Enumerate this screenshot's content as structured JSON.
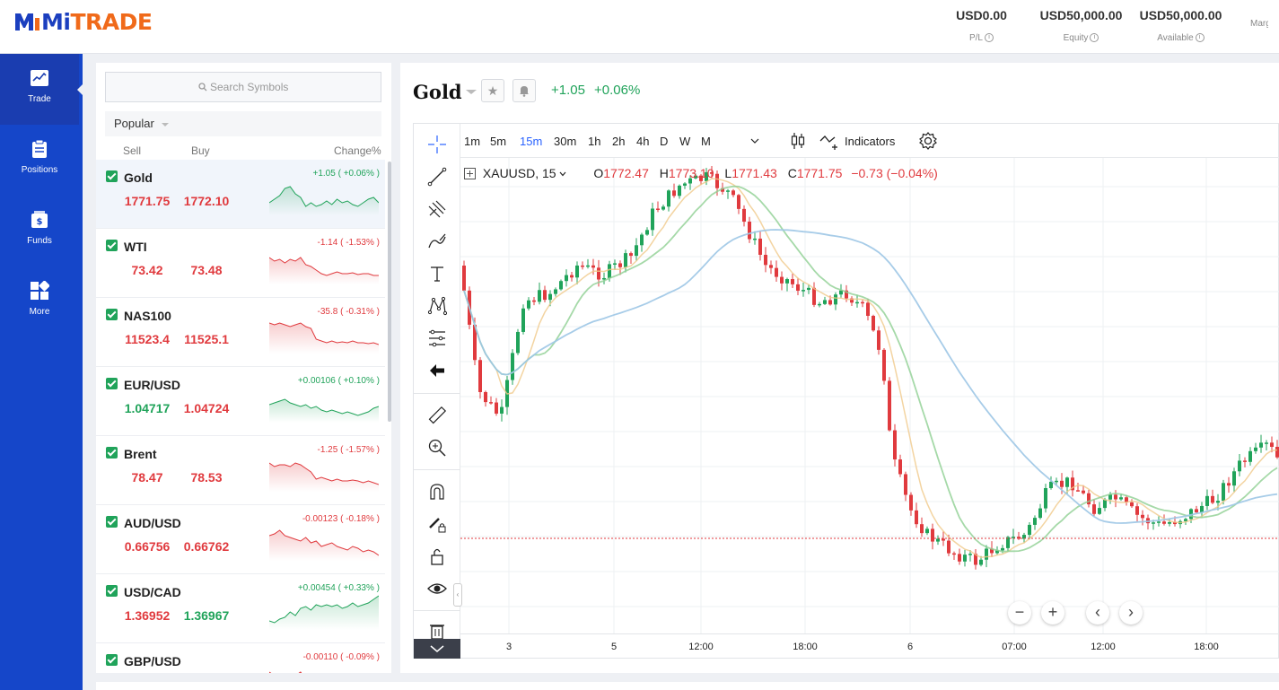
{
  "brand": {
    "logo_a": "Mi",
    "logo_b": "TRADE"
  },
  "account": [
    {
      "value": "USD0.00",
      "label": "P/L"
    },
    {
      "value": "USD50,000.00",
      "label": "Equity"
    },
    {
      "value": "USD50,000.00",
      "label": "Available"
    },
    {
      "value": "",
      "label": "Margi"
    }
  ],
  "nav": [
    {
      "label": "Trade",
      "icon": "chart-icon"
    },
    {
      "label": "Positions",
      "icon": "clipboard-icon"
    },
    {
      "label": "Funds",
      "icon": "wallet-icon"
    },
    {
      "label": "More",
      "icon": "grid-icon"
    }
  ],
  "watchlist": {
    "search_placeholder": "Search Symbols",
    "filter": "Popular",
    "col_sell": "Sell",
    "col_buy": "Buy",
    "col_change": "Change%",
    "items": [
      {
        "symbol": "Gold",
        "sell": "1771.75",
        "buy": "1772.10",
        "change": "+1.05 ( +0.06% )",
        "dir": "up",
        "sell_dir": "dn",
        "buy_dir": "dn"
      },
      {
        "symbol": "WTI",
        "sell": "73.42",
        "buy": "73.48",
        "change": "-1.14 ( -1.53% )",
        "dir": "dn",
        "sell_dir": "dn",
        "buy_dir": "dn"
      },
      {
        "symbol": "NAS100",
        "sell": "11523.4",
        "buy": "11525.1",
        "change": "-35.8 ( -0.31% )",
        "dir": "dn",
        "sell_dir": "dn",
        "buy_dir": "dn"
      },
      {
        "symbol": "EUR/USD",
        "sell": "1.04717",
        "buy": "1.04724",
        "change": "+0.00106 ( +0.10% )",
        "dir": "up",
        "sell_dir": "up",
        "buy_dir": "dn"
      },
      {
        "symbol": "Brent",
        "sell": "78.47",
        "buy": "78.53",
        "change": "-1.25 ( -1.57% )",
        "dir": "dn",
        "sell_dir": "dn",
        "buy_dir": "dn"
      },
      {
        "symbol": "AUD/USD",
        "sell": "0.66756",
        "buy": "0.66762",
        "change": "-0.00123 ( -0.18% )",
        "dir": "dn",
        "sell_dir": "dn",
        "buy_dir": "dn"
      },
      {
        "symbol": "USD/CAD",
        "sell": "1.36952",
        "buy": "1.36967",
        "change": "+0.00454 ( +0.33% )",
        "dir": "up",
        "sell_dir": "dn",
        "buy_dir": "up"
      },
      {
        "symbol": "GBP/USD",
        "sell": "",
        "buy": "",
        "change": "-0.00110 ( -0.09% )",
        "dir": "dn",
        "sell_dir": "dn",
        "buy_dir": "dn"
      }
    ]
  },
  "instrument": {
    "title": "Gold",
    "change_abs": "+1.05",
    "change_pct": "+0.06%"
  },
  "chart_toolbar": {
    "timeframes": [
      "1m",
      "5m",
      "15m",
      "30m",
      "1h",
      "2h",
      "4h",
      "D",
      "W",
      "M"
    ],
    "active": "15m",
    "indicators_label": "Indicators"
  },
  "legend": {
    "symbol": "XAUUSD, 15",
    "o_label": "O",
    "o": "1772.47",
    "h_label": "H",
    "h": "1773.10",
    "l_label": "L",
    "l": "1771.43",
    "c_label": "C",
    "c": "1771.75",
    "chg": "−0.73 (−0.04%)"
  },
  "x_axis": [
    "3",
    "5",
    "12:00",
    "18:00",
    "6",
    "07:00",
    "12:00",
    "18:00"
  ],
  "colors": {
    "up": "#20a35a",
    "down": "#e03a3e",
    "brand": "#1546c9",
    "accent": "#2962ff"
  }
}
